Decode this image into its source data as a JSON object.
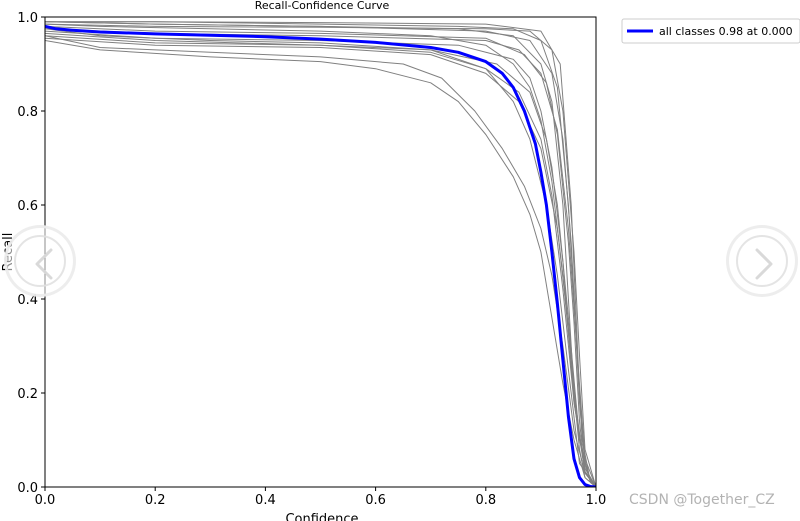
{
  "chart_data": {
    "type": "line",
    "title": "Recall-Confidence Curve",
    "xlabel": "Confidence",
    "ylabel": "Recall",
    "xlim": [
      0.0,
      1.0
    ],
    "ylim": [
      0.0,
      1.0
    ],
    "xticks": [
      "0.0",
      "0.2",
      "0.4",
      "0.6",
      "0.8",
      "1.0"
    ],
    "yticks": [
      "0.0",
      "0.2",
      "0.4",
      "0.6",
      "0.8",
      "1.0"
    ],
    "grid": false,
    "legend_position": "outside-top-right",
    "series": [
      {
        "name": "all classes 0.98 at 0.000",
        "color": "#0000ff",
        "x": [
          0.0,
          0.02,
          0.05,
          0.1,
          0.2,
          0.3,
          0.4,
          0.5,
          0.6,
          0.7,
          0.75,
          0.8,
          0.83,
          0.85,
          0.87,
          0.89,
          0.9,
          0.91,
          0.92,
          0.93,
          0.94,
          0.95,
          0.96,
          0.97,
          0.98,
          0.99,
          1.0
        ],
        "y": [
          0.98,
          0.975,
          0.972,
          0.968,
          0.964,
          0.961,
          0.958,
          0.953,
          0.946,
          0.935,
          0.925,
          0.905,
          0.88,
          0.85,
          0.8,
          0.73,
          0.67,
          0.6,
          0.5,
          0.39,
          0.27,
          0.15,
          0.06,
          0.02,
          0.005,
          0.001,
          0.0
        ]
      },
      {
        "color": "#808080",
        "x": [
          0.0,
          0.1,
          0.3,
          0.5,
          0.6,
          0.7,
          0.75,
          0.8,
          0.85,
          0.88,
          0.9,
          0.92,
          0.94,
          0.96,
          0.98,
          1.0
        ],
        "y": [
          0.95,
          0.93,
          0.915,
          0.905,
          0.89,
          0.86,
          0.82,
          0.75,
          0.66,
          0.58,
          0.5,
          0.36,
          0.22,
          0.1,
          0.02,
          0.0
        ]
      },
      {
        "color": "#808080",
        "x": [
          0.0,
          0.1,
          0.3,
          0.5,
          0.65,
          0.72,
          0.78,
          0.83,
          0.87,
          0.9,
          0.92,
          0.94,
          0.96,
          0.98,
          1.0
        ],
        "y": [
          0.96,
          0.935,
          0.925,
          0.915,
          0.9,
          0.87,
          0.8,
          0.72,
          0.64,
          0.55,
          0.45,
          0.3,
          0.12,
          0.03,
          0.0
        ]
      },
      {
        "color": "#808080",
        "x": [
          0.0,
          0.1,
          0.3,
          0.5,
          0.7,
          0.8,
          0.85,
          0.88,
          0.91,
          0.93,
          0.95,
          0.97,
          1.0
        ],
        "y": [
          0.975,
          0.96,
          0.95,
          0.945,
          0.93,
          0.89,
          0.82,
          0.74,
          0.6,
          0.45,
          0.25,
          0.05,
          0.0
        ]
      },
      {
        "color": "#808080",
        "x": [
          0.0,
          0.1,
          0.3,
          0.5,
          0.7,
          0.8,
          0.85,
          0.88,
          0.9,
          0.92,
          0.94,
          0.96,
          0.98,
          1.0
        ],
        "y": [
          0.985,
          0.98,
          0.975,
          0.97,
          0.96,
          0.94,
          0.9,
          0.85,
          0.78,
          0.65,
          0.45,
          0.2,
          0.03,
          0.0
        ]
      },
      {
        "color": "#808080",
        "x": [
          0.0,
          0.2,
          0.5,
          0.75,
          0.85,
          0.9,
          0.92,
          0.94,
          0.95,
          0.96,
          0.97,
          0.98,
          1.0
        ],
        "y": [
          0.99,
          0.985,
          0.98,
          0.975,
          0.96,
          0.9,
          0.82,
          0.6,
          0.4,
          0.2,
          0.08,
          0.02,
          0.0
        ]
      },
      {
        "color": "#808080",
        "x": [
          0.0,
          0.2,
          0.5,
          0.75,
          0.85,
          0.88,
          0.9,
          0.92,
          0.94,
          0.95,
          0.96,
          0.98,
          1.0
        ],
        "y": [
          0.97,
          0.955,
          0.95,
          0.94,
          0.91,
          0.87,
          0.8,
          0.68,
          0.48,
          0.33,
          0.18,
          0.04,
          0.0
        ]
      },
      {
        "color": "#808080",
        "x": [
          0.0,
          0.2,
          0.5,
          0.75,
          0.85,
          0.9,
          0.93,
          0.95,
          0.96,
          0.97,
          0.98,
          0.99,
          1.0
        ],
        "y": [
          0.99,
          0.99,
          0.985,
          0.98,
          0.975,
          0.95,
          0.85,
          0.6,
          0.4,
          0.18,
          0.05,
          0.01,
          0.0
        ]
      },
      {
        "color": "#808080",
        "x": [
          0.0,
          0.2,
          0.5,
          0.7,
          0.8,
          0.86,
          0.9,
          0.92,
          0.94,
          0.96,
          0.98,
          1.0
        ],
        "y": [
          0.965,
          0.95,
          0.94,
          0.925,
          0.89,
          0.84,
          0.74,
          0.62,
          0.42,
          0.18,
          0.03,
          0.0
        ]
      },
      {
        "color": "#808080",
        "x": [
          0.0,
          0.2,
          0.5,
          0.8,
          0.87,
          0.91,
          0.93,
          0.95,
          0.96,
          0.97,
          0.98,
          1.0
        ],
        "y": [
          0.98,
          0.97,
          0.965,
          0.955,
          0.92,
          0.86,
          0.75,
          0.52,
          0.35,
          0.14,
          0.03,
          0.0
        ]
      },
      {
        "color": "#808080",
        "x": [
          0.0,
          0.2,
          0.5,
          0.8,
          0.88,
          0.92,
          0.94,
          0.955,
          0.965,
          0.975,
          0.99,
          1.0
        ],
        "y": [
          0.99,
          0.985,
          0.98,
          0.97,
          0.95,
          0.88,
          0.74,
          0.52,
          0.3,
          0.1,
          0.01,
          0.0
        ]
      },
      {
        "color": "#808080",
        "x": [
          0.0,
          0.2,
          0.5,
          0.7,
          0.82,
          0.88,
          0.91,
          0.93,
          0.95,
          0.97,
          0.99,
          1.0
        ],
        "y": [
          0.96,
          0.945,
          0.94,
          0.93,
          0.9,
          0.84,
          0.74,
          0.6,
          0.36,
          0.1,
          0.01,
          0.0
        ]
      },
      {
        "color": "#808080",
        "x": [
          0.0,
          0.2,
          0.5,
          0.8,
          0.86,
          0.9,
          0.93,
          0.95,
          0.965,
          0.98,
          1.0
        ],
        "y": [
          0.975,
          0.965,
          0.96,
          0.95,
          0.93,
          0.88,
          0.76,
          0.55,
          0.3,
          0.06,
          0.0
        ]
      },
      {
        "color": "#808080",
        "x": [
          0.0,
          0.2,
          0.5,
          0.8,
          0.88,
          0.92,
          0.94,
          0.96,
          0.97,
          0.98,
          1.0
        ],
        "y": [
          0.985,
          0.98,
          0.978,
          0.975,
          0.97,
          0.93,
          0.8,
          0.5,
          0.28,
          0.08,
          0.0
        ]
      },
      {
        "color": "#808080",
        "x": [
          0.0,
          0.2,
          0.5,
          0.7,
          0.8,
          0.86,
          0.9,
          0.93,
          0.95,
          0.97,
          0.99,
          1.0
        ],
        "y": [
          0.955,
          0.94,
          0.935,
          0.92,
          0.88,
          0.82,
          0.72,
          0.55,
          0.34,
          0.1,
          0.01,
          0.0
        ]
      },
      {
        "color": "#808080",
        "x": [
          0.0,
          0.2,
          0.5,
          0.8,
          0.9,
          0.935,
          0.955,
          0.97,
          0.98,
          1.0
        ],
        "y": [
          0.99,
          0.99,
          0.988,
          0.985,
          0.97,
          0.9,
          0.6,
          0.2,
          0.04,
          0.0
        ]
      }
    ]
  },
  "watermark": "CSDN @Together_CZ",
  "nav": {
    "prev_icon": "chevron-left-icon",
    "next_icon": "chevron-right-icon"
  }
}
